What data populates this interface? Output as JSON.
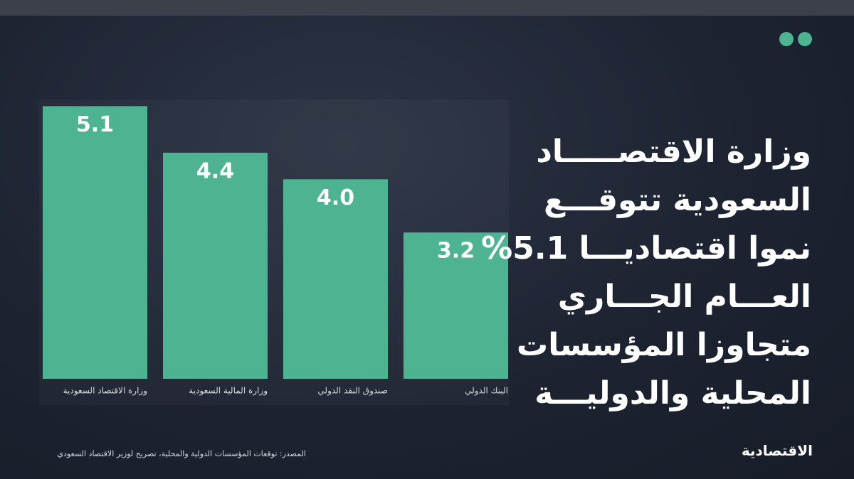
{
  "chart_data": {
    "type": "bar",
    "title_lines": [
      "وزارة الاقتصـــــاد",
      "السعودية تتوقـــع",
      "نموا اقتصاديـــا 5.1%",
      "العـــام الجـــاري",
      "متجاوزا المؤسسات",
      "المحلية والدوليـــة"
    ],
    "categories": [
      "وزارة الاقتصاد السعودية",
      "وزارة المالية السعودية",
      "صندوق النقد الدولي",
      "البنك الدولي"
    ],
    "values": [
      5.1,
      4.4,
      4.0,
      3.2
    ],
    "value_labels": [
      "5.1",
      "4.4",
      "4.0",
      "3.2"
    ],
    "color": "#4db391",
    "ylim": [
      1,
      5.2
    ],
    "source": "المصدر: توقعات المؤسسات الدولية والمحلية، تصريح لوزير الاقتصاد السعودي",
    "brand": "الاقتصادية"
  }
}
